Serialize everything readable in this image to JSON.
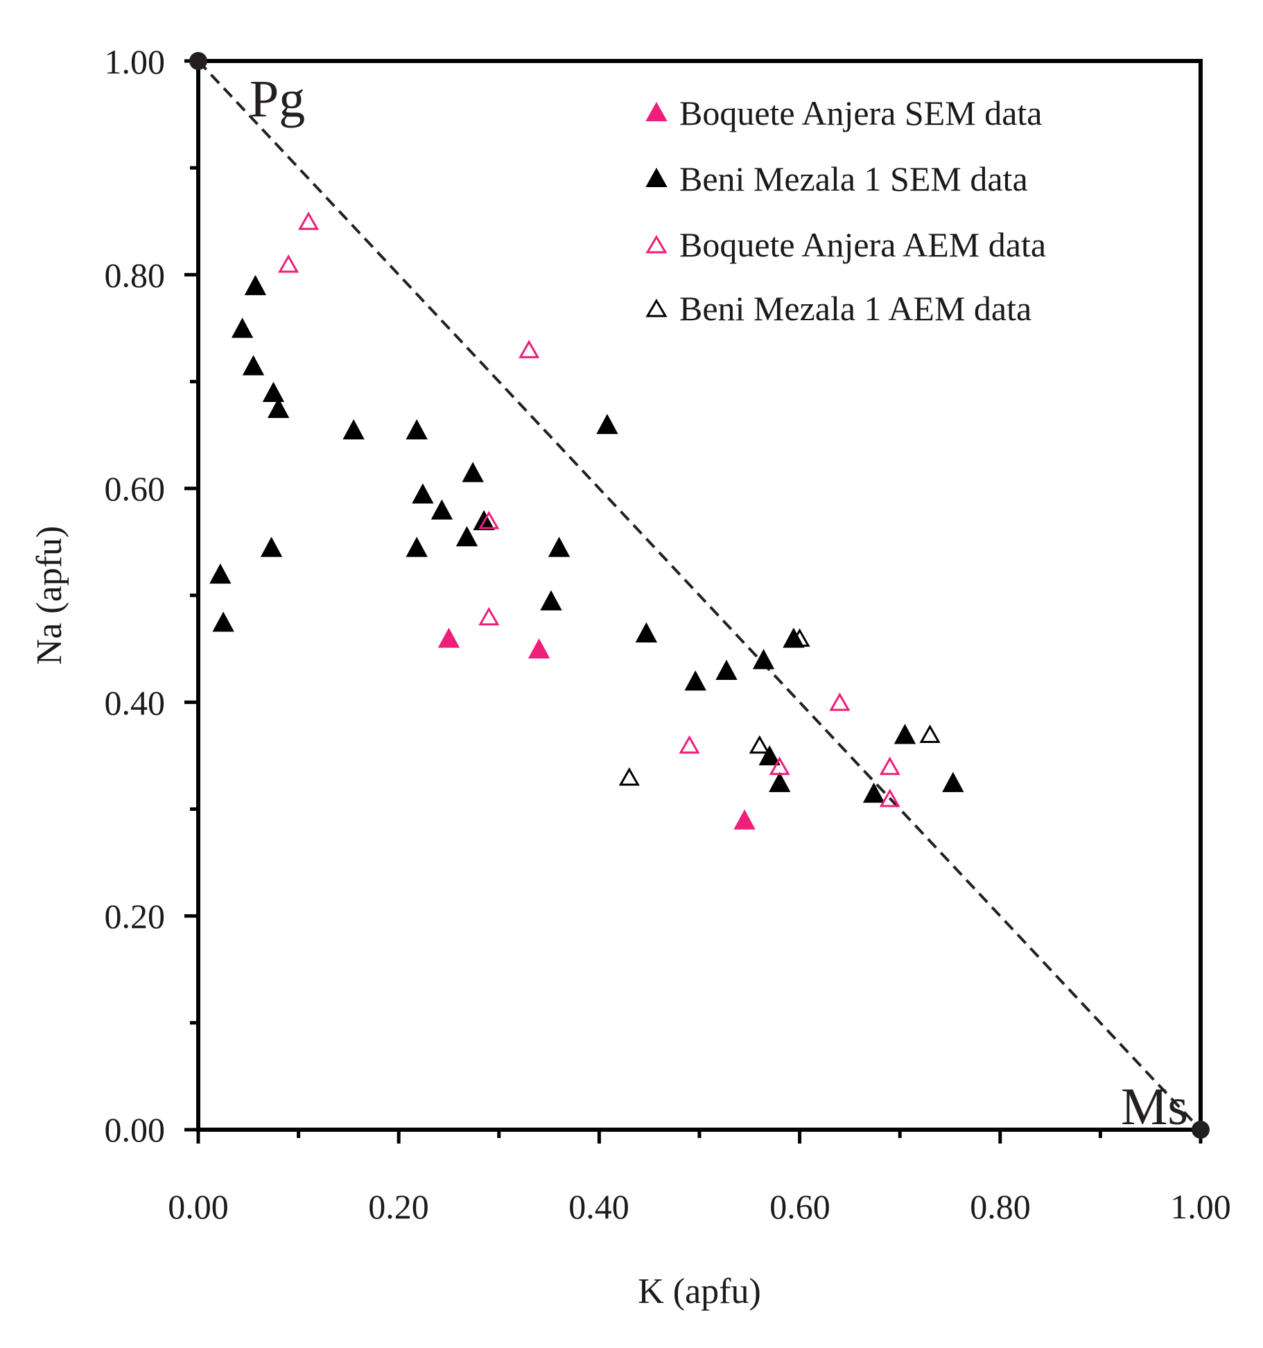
{
  "chart_data": {
    "type": "scatter",
    "xlabel": "K (apfu)",
    "ylabel": "Na (apfu)",
    "xlim": [
      0,
      1
    ],
    "ylim": [
      0,
      1
    ],
    "x_ticks": [
      "0.00",
      "0.20",
      "0.40",
      "0.60",
      "0.80",
      "1.00"
    ],
    "y_ticks": [
      "0.00",
      "0.20",
      "0.40",
      "0.60",
      "0.80",
      "1.00"
    ],
    "grid": false,
    "legend_position": "top-right",
    "colors": {
      "pink": "#ee1e79",
      "black": "#000000",
      "line": "#231f20"
    },
    "end_members": [
      {
        "name": "Pg",
        "x": 0.0,
        "y": 1.0
      },
      {
        "name": "Ms",
        "x": 1.0,
        "y": 0.0
      }
    ],
    "reference_line": {
      "from": [
        0,
        1
      ],
      "to": [
        1,
        0
      ],
      "style": "dashed"
    },
    "series": [
      {
        "name": "Boquete Anjera SEM data",
        "marker": "filled-triangle",
        "color": "#ee1e79",
        "points": [
          [
            0.25,
            0.46
          ],
          [
            0.34,
            0.45
          ],
          [
            0.545,
            0.29
          ]
        ]
      },
      {
        "name": "Beni Mezala 1 SEM data",
        "marker": "filled-triangle",
        "color": "#000000",
        "points": [
          [
            0.022,
            0.52
          ],
          [
            0.025,
            0.475
          ],
          [
            0.044,
            0.75
          ],
          [
            0.055,
            0.715
          ],
          [
            0.057,
            0.79
          ],
          [
            0.073,
            0.545
          ],
          [
            0.075,
            0.69
          ],
          [
            0.08,
            0.675
          ],
          [
            0.155,
            0.655
          ],
          [
            0.218,
            0.655
          ],
          [
            0.218,
            0.545
          ],
          [
            0.224,
            0.595
          ],
          [
            0.243,
            0.58
          ],
          [
            0.268,
            0.555
          ],
          [
            0.274,
            0.615
          ],
          [
            0.285,
            0.57
          ],
          [
            0.352,
            0.495
          ],
          [
            0.36,
            0.545
          ],
          [
            0.408,
            0.66
          ],
          [
            0.447,
            0.465
          ],
          [
            0.496,
            0.42
          ],
          [
            0.527,
            0.43
          ],
          [
            0.564,
            0.44
          ],
          [
            0.57,
            0.35
          ],
          [
            0.58,
            0.325
          ],
          [
            0.594,
            0.46
          ],
          [
            0.674,
            0.315
          ],
          [
            0.705,
            0.37
          ],
          [
            0.753,
            0.325
          ]
        ]
      },
      {
        "name": "Boquete Anjera AEM data",
        "marker": "open-triangle",
        "color": "#ee1e79",
        "points": [
          [
            0.09,
            0.81
          ],
          [
            0.11,
            0.85
          ],
          [
            0.29,
            0.57
          ],
          [
            0.29,
            0.48
          ],
          [
            0.33,
            0.73
          ],
          [
            0.49,
            0.36
          ],
          [
            0.58,
            0.34
          ],
          [
            0.64,
            0.4
          ],
          [
            0.69,
            0.34
          ],
          [
            0.69,
            0.31
          ]
        ]
      },
      {
        "name": "Beni Mezala 1 AEM data",
        "marker": "open-triangle",
        "color": "#000000",
        "points": [
          [
            0.43,
            0.33
          ],
          [
            0.56,
            0.36
          ],
          [
            0.6,
            0.46
          ],
          [
            0.73,
            0.37
          ]
        ]
      }
    ]
  }
}
